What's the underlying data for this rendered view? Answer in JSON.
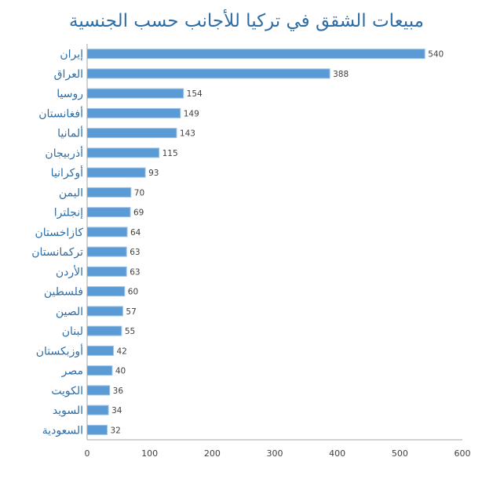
{
  "chart_data": {
    "type": "bar",
    "orientation": "horizontal",
    "title": "مبيعات الشقق في تركيا للأجانب حسب الجنسية",
    "categories": [
      "إيران",
      "العراق",
      "روسيا",
      "أفغانستان",
      "ألمانيا",
      "أذربيجان",
      "أوكرانيا",
      "اليمن",
      "إنجلترا",
      "كازاخستان",
      "تركمانستان",
      "الأردن",
      "فلسطين",
      "الصين",
      "لبنان",
      "أوزبكستان",
      "مصر",
      "الكويت",
      "السويد",
      "السعودية"
    ],
    "values": [
      540,
      388,
      154,
      149,
      143,
      115,
      93,
      70,
      69,
      64,
      63,
      63,
      60,
      57,
      55,
      42,
      40,
      36,
      34,
      32
    ],
    "xlim": [
      0,
      600
    ],
    "xticks": [
      0,
      100,
      200,
      300,
      400,
      500,
      600
    ],
    "xlabel": "",
    "ylabel": "",
    "grid": false,
    "data_labels": true,
    "colors": {
      "bar": "#5B9BD5",
      "title": "#2E6DA4",
      "axis": "#A6A6A6"
    }
  }
}
